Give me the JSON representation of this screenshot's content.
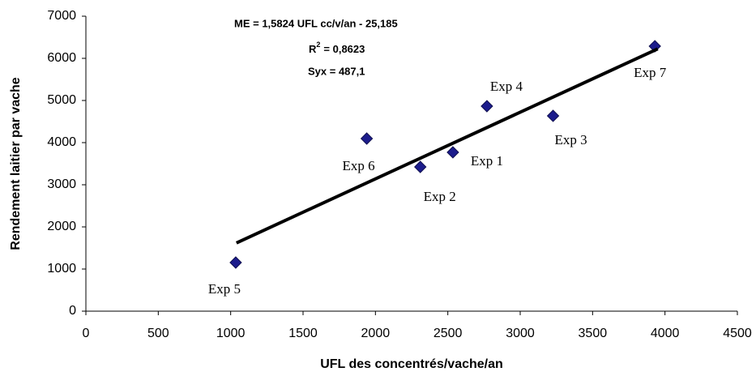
{
  "chart_data": {
    "type": "scatter",
    "xlabel": "UFL des concentrés/vache/an",
    "ylabel": "Rendement laitier par vache",
    "xlim": [
      0,
      4500
    ],
    "xticks": [
      0,
      500,
      1000,
      1500,
      2000,
      2500,
      3000,
      3500,
      4000,
      4500
    ],
    "ylim": [
      0,
      7000
    ],
    "yticks": [
      0,
      1000,
      2000,
      3000,
      4000,
      5000,
      6000,
      7000
    ],
    "grid": false,
    "annotations": [
      "ME = 1,5824 UFL cc/v/an - 25,185",
      {
        "base": "R",
        "sup": "2",
        "rest": "= 0,8623"
      },
      "Syx = 487,1"
    ],
    "series": [
      {
        "color": "#1c1c8c",
        "labels": [
          "Exp 1",
          "Exp 2",
          "Exp 3",
          "Exp 4",
          "Exp 5",
          "Exp 6",
          "Exp 7"
        ],
        "x": [
          2535,
          2310,
          3227,
          2770,
          1035,
          1940,
          3930
        ],
        "values": [
          3770,
          3423,
          4635,
          4865,
          1154,
          4096,
          6288
        ]
      },
      {
        "type": "line",
        "color": "#000000",
        "x": [
          1040,
          3950
        ],
        "values": [
          1620,
          6225
        ]
      }
    ]
  }
}
